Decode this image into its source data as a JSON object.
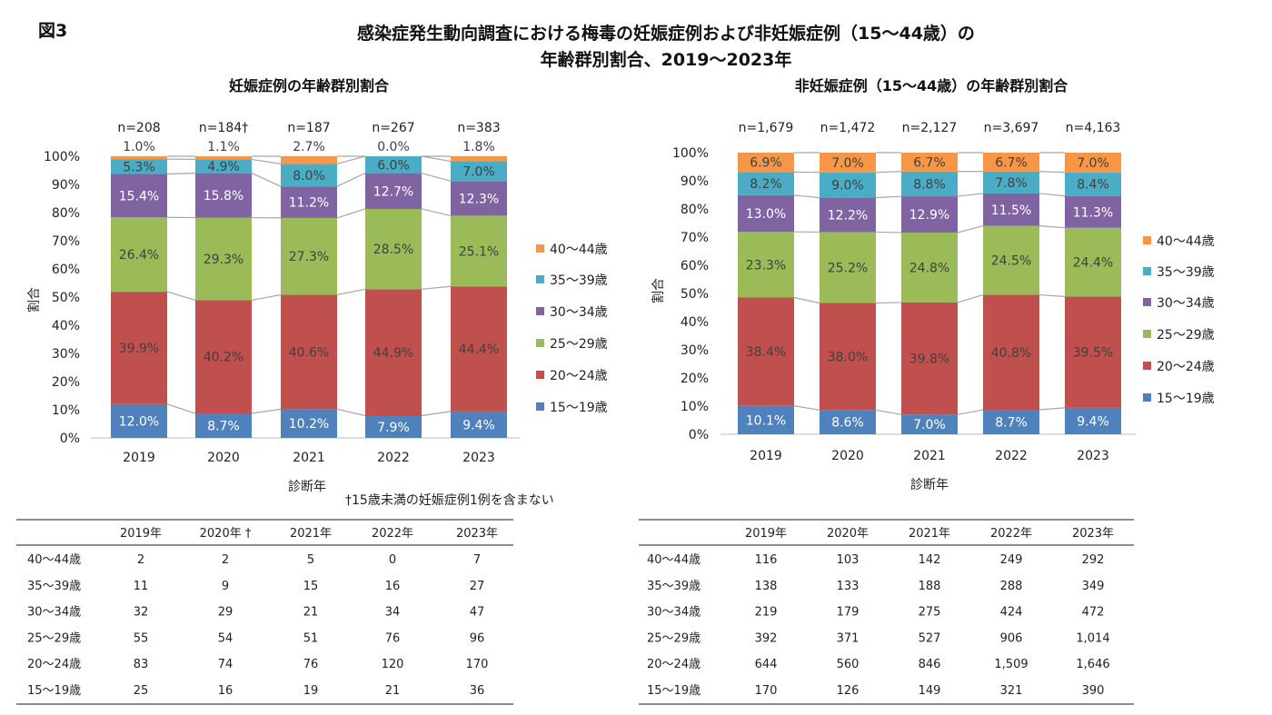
{
  "figure_label": "図3",
  "title_line1": "感染症発生動向調査における梅毒の妊娠症例および非妊娠症例（15～44歳）の",
  "title_line2": "年齢群別割合、2019～2023年",
  "footnote": "†15歳未満の妊娠症例1例を含まない",
  "colors": {
    "15～19歳": "#4F81BD",
    "20～24歳": "#C0504D",
    "25～29歳": "#9BBB59",
    "30～34歳": "#8064A2",
    "35～39歳": "#4BACC6",
    "40～44歳": "#F79646"
  },
  "chart_data": [
    {
      "type": "bar",
      "stacked": true,
      "title": "妊娠症例の年齢群別割合",
      "xlabel": "診断年",
      "ylabel": "割合",
      "ylim": [
        0,
        100
      ],
      "yticks": [
        "0%",
        "10%",
        "20%",
        "30%",
        "40%",
        "50%",
        "60%",
        "70%",
        "80%",
        "90%",
        "100%"
      ],
      "categories": [
        "2019",
        "2020",
        "2021",
        "2022",
        "2023"
      ],
      "n_labels": [
        "n=208",
        "n=184†",
        "n=187",
        "n=267",
        "n=383"
      ],
      "legend_position": "right",
      "series": [
        {
          "name": "15～19歳",
          "values": [
            12.0,
            8.7,
            10.2,
            7.9,
            9.4
          ]
        },
        {
          "name": "20～24歳",
          "values": [
            39.9,
            40.2,
            40.6,
            44.9,
            44.4
          ]
        },
        {
          "name": "25～29歳",
          "values": [
            26.4,
            29.3,
            27.3,
            28.5,
            25.1
          ]
        },
        {
          "name": "30～34歳",
          "values": [
            15.4,
            15.8,
            11.2,
            12.7,
            12.3
          ]
        },
        {
          "name": "35～39歳",
          "values": [
            5.3,
            4.9,
            8.0,
            6.0,
            7.0
          ]
        },
        {
          "name": "40～44歳",
          "values": [
            1.0,
            1.1,
            2.7,
            0.0,
            1.8
          ]
        }
      ]
    },
    {
      "type": "bar",
      "stacked": true,
      "title": "非妊娠症例（15～44歳）の年齢群別割合",
      "xlabel": "診断年",
      "ylabel": "割合",
      "ylim": [
        0,
        100
      ],
      "yticks": [
        "0%",
        "10%",
        "20%",
        "30%",
        "40%",
        "50%",
        "60%",
        "70%",
        "80%",
        "90%",
        "100%"
      ],
      "categories": [
        "2019",
        "2020",
        "2021",
        "2022",
        "2023"
      ],
      "n_labels": [
        "n=1,679",
        "n=1,472",
        "n=2,127",
        "n=3,697",
        "n=4,163"
      ],
      "legend_position": "right",
      "series": [
        {
          "name": "15～19歳",
          "values": [
            10.1,
            8.6,
            7.0,
            8.7,
            9.4
          ]
        },
        {
          "name": "20～24歳",
          "values": [
            38.4,
            38.0,
            39.8,
            40.8,
            39.5
          ]
        },
        {
          "name": "25～29歳",
          "values": [
            23.3,
            25.2,
            24.8,
            24.5,
            24.4
          ]
        },
        {
          "name": "30～34歳",
          "values": [
            13.0,
            12.2,
            12.9,
            11.5,
            11.3
          ]
        },
        {
          "name": "35～39歳",
          "values": [
            8.2,
            9.0,
            8.8,
            7.8,
            8.4
          ]
        },
        {
          "name": "40～44歳",
          "values": [
            6.9,
            7.0,
            6.7,
            6.7,
            7.0
          ]
        }
      ]
    }
  ],
  "tables": [
    {
      "headers": [
        "",
        "2019年",
        "2020年 †",
        "2021年",
        "2022年",
        "2023年"
      ],
      "rows": [
        [
          "40～44歳",
          "2",
          "2",
          "5",
          "0",
          "7"
        ],
        [
          "35～39歳",
          "11",
          "9",
          "15",
          "16",
          "27"
        ],
        [
          "30～34歳",
          "32",
          "29",
          "21",
          "34",
          "47"
        ],
        [
          "25～29歳",
          "55",
          "54",
          "51",
          "76",
          "96"
        ],
        [
          "20～24歳",
          "83",
          "74",
          "76",
          "120",
          "170"
        ],
        [
          "15～19歳",
          "25",
          "16",
          "19",
          "21",
          "36"
        ]
      ]
    },
    {
      "headers": [
        "",
        "2019年",
        "2020年",
        "2021年",
        "2022年",
        "2023年"
      ],
      "rows": [
        [
          "40～44歳",
          "116",
          "103",
          "142",
          "249",
          "292"
        ],
        [
          "35～39歳",
          "138",
          "133",
          "188",
          "288",
          "349"
        ],
        [
          "30～34歳",
          "219",
          "179",
          "275",
          "424",
          "472"
        ],
        [
          "25～29歳",
          "392",
          "371",
          "527",
          "906",
          "1,014"
        ],
        [
          "20～24歳",
          "644",
          "560",
          "846",
          "1,509",
          "1,646"
        ],
        [
          "15～19歳",
          "170",
          "126",
          "149",
          "321",
          "390"
        ]
      ]
    }
  ]
}
